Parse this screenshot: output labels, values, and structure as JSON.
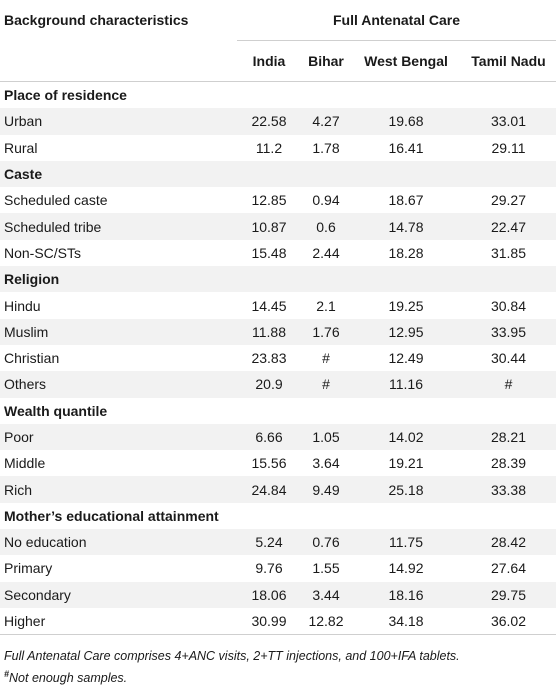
{
  "header": {
    "row_label": "Background characteristics",
    "group_label": "Full Antenatal Care",
    "columns": [
      "India",
      "Bihar",
      "West Bengal",
      "Tamil Nadu"
    ]
  },
  "sections": [
    {
      "title": "Place of residence",
      "rows": [
        {
          "label": "Urban",
          "values": [
            "22.58",
            "4.27",
            "19.68",
            "33.01"
          ]
        },
        {
          "label": "Rural",
          "values": [
            "11.2",
            "1.78",
            "16.41",
            "29.11"
          ]
        }
      ]
    },
    {
      "title": "Caste",
      "rows": [
        {
          "label": "Scheduled caste",
          "values": [
            "12.85",
            "0.94",
            "18.67",
            "29.27"
          ]
        },
        {
          "label": "Scheduled tribe",
          "values": [
            "10.87",
            "0.6",
            "14.78",
            "22.47"
          ]
        },
        {
          "label": "Non-SC/STs",
          "values": [
            "15.48",
            "2.44",
            "18.28",
            "31.85"
          ]
        }
      ]
    },
    {
      "title": "Religion",
      "rows": [
        {
          "label": "Hindu",
          "values": [
            "14.45",
            "2.1",
            "19.25",
            "30.84"
          ]
        },
        {
          "label": "Muslim",
          "values": [
            "11.88",
            "1.76",
            "12.95",
            "33.95"
          ]
        },
        {
          "label": "Christian",
          "values": [
            "23.83",
            "#",
            "12.49",
            "30.44"
          ]
        },
        {
          "label": "Others",
          "values": [
            "20.9",
            "#",
            "11.16",
            "#"
          ]
        }
      ]
    },
    {
      "title": "Wealth quantile",
      "rows": [
        {
          "label": "Poor",
          "values": [
            "6.66",
            "1.05",
            "14.02",
            "28.21"
          ]
        },
        {
          "label": "Middle",
          "values": [
            "15.56",
            "3.64",
            "19.21",
            "28.39"
          ]
        },
        {
          "label": "Rich",
          "values": [
            "24.84",
            "9.49",
            "25.18",
            "33.38"
          ]
        }
      ]
    },
    {
      "title": "Mother’s educational attainment",
      "rows": [
        {
          "label": "No education",
          "values": [
            "5.24",
            "0.76",
            "11.75",
            "28.42"
          ]
        },
        {
          "label": "Primary",
          "values": [
            "9.76",
            "1.55",
            "14.92",
            "27.64"
          ]
        },
        {
          "label": "Secondary",
          "values": [
            "18.06",
            "3.44",
            "18.16",
            "29.75"
          ]
        },
        {
          "label": "Higher",
          "values": [
            "30.99",
            "12.82",
            "34.18",
            "36.02"
          ]
        }
      ]
    }
  ],
  "footnote": {
    "note": "Full Antenatal Care comprises 4+ANC visits, 2+TT injections, and 100+IFA tablets.",
    "symbol": "#",
    "symbol_note": "Not enough samples."
  },
  "colors": {
    "stripe": "#f2f2f2",
    "rule": "#cfcfcf"
  }
}
